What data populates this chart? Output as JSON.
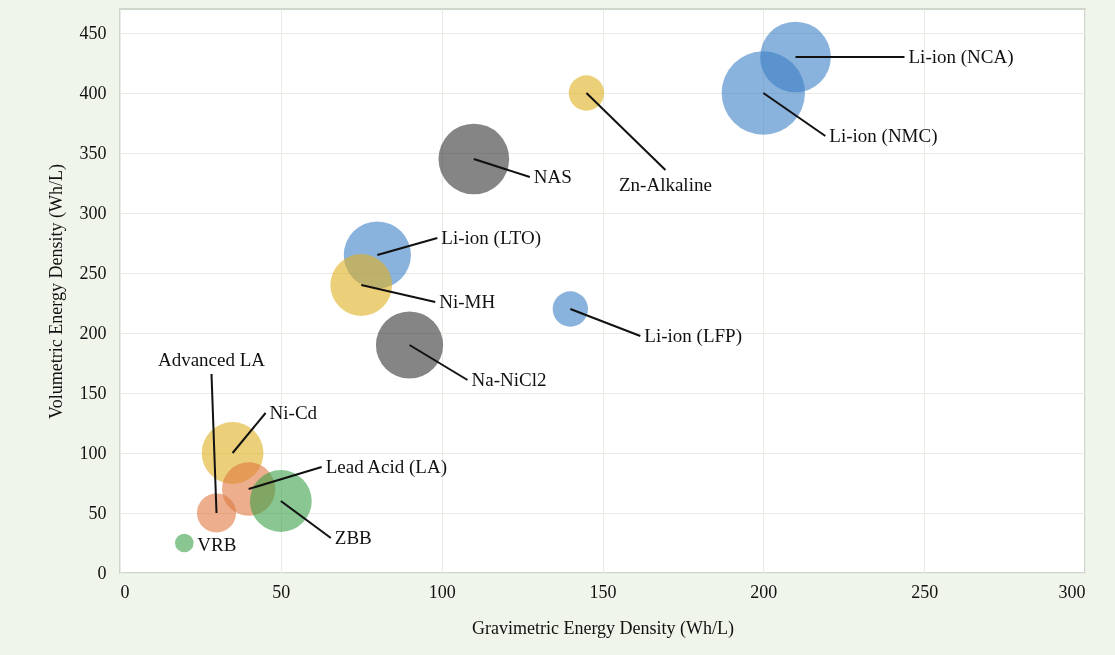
{
  "chart_data": {
    "type": "bubble",
    "xlabel": "Gravimetric Energy Density (Wh/L)",
    "ylabel": "Volumetric Energy Density (Wh/L)",
    "xlim": [
      0,
      300
    ],
    "ylim": [
      0,
      470
    ],
    "xticks": [
      0,
      50,
      100,
      150,
      200,
      250,
      300
    ],
    "yticks": [
      0,
      50,
      100,
      150,
      200,
      250,
      300,
      350,
      400,
      450
    ],
    "grid": true,
    "series": [
      {
        "name": "Li-ion (NCA)",
        "color": "#3b7fc4",
        "x": [
          210
        ],
        "values": [
          430
        ],
        "sizes": [
          0.72
        ]
      },
      {
        "name": "Li-ion (NMC)",
        "color": "#3b7fc4",
        "x": [
          200
        ],
        "values": [
          400
        ],
        "sizes": [
          1
        ]
      },
      {
        "name": "Zn-Alkaline",
        "color": "#e0b020",
        "x": [
          145
        ],
        "values": [
          400
        ],
        "sizes": [
          0.18
        ]
      },
      {
        "name": "NAS",
        "color": "#333333",
        "x": [
          110
        ],
        "values": [
          345
        ],
        "sizes": [
          0.72
        ]
      },
      {
        "name": "Li-ion (LTO)",
        "color": "#3b7fc4",
        "x": [
          80
        ],
        "values": [
          265
        ],
        "sizes": [
          0.65
        ]
      },
      {
        "name": "Ni-MH",
        "color": "#e0b020",
        "x": [
          75
        ],
        "values": [
          240
        ],
        "sizes": [
          0.55
        ]
      },
      {
        "name": "Li-ion (LFP)",
        "color": "#3b7fc4",
        "x": [
          140
        ],
        "values": [
          220
        ],
        "sizes": [
          0.18
        ]
      },
      {
        "name": "Na-NiCl2",
        "color": "#333333",
        "x": [
          90
        ],
        "values": [
          190
        ],
        "sizes": [
          0.65
        ]
      },
      {
        "name": "Ni-Cd",
        "color": "#e0b020",
        "x": [
          35
        ],
        "values": [
          100
        ],
        "sizes": [
          0.55
        ]
      },
      {
        "name": "Lead Acid (LA)",
        "color": "#e07840",
        "x": [
          40
        ],
        "values": [
          70
        ],
        "sizes": [
          0.41
        ]
      },
      {
        "name": "Advanced LA",
        "color": "#e07840",
        "x": [
          30
        ],
        "values": [
          50
        ],
        "sizes": [
          0.22
        ]
      },
      {
        "name": "ZBB",
        "color": "#3aa04a",
        "x": [
          50
        ],
        "values": [
          60
        ],
        "sizes": [
          0.55
        ]
      },
      {
        "name": "VRB",
        "color": "#3aa04a",
        "x": [
          20
        ],
        "values": [
          25
        ],
        "sizes": [
          0.05
        ]
      }
    ]
  }
}
